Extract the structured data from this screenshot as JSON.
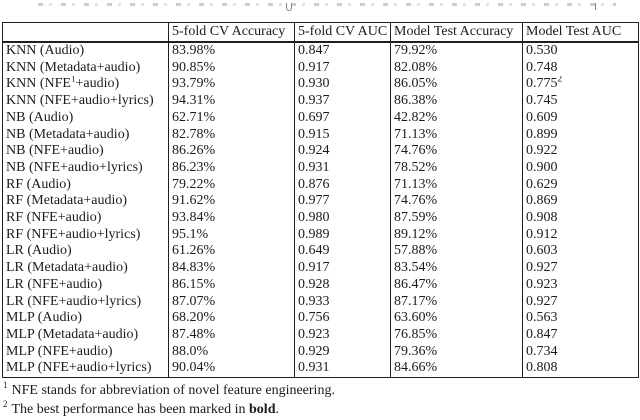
{
  "table": {
    "columns": [
      "",
      "5-fold CV Accuracy",
      "5-fold CV AUC",
      "Model Test Accuracy",
      "Model Test AUC"
    ],
    "rows": [
      {
        "label": {
          "pre": "KNN (Audio)",
          "sup": "",
          "post": ""
        },
        "cells": [
          {
            "t": "83.98%",
            "b": false,
            "sup": ""
          },
          {
            "t": "0.847",
            "b": false,
            "sup": ""
          },
          {
            "t": "79.92%",
            "b": false,
            "sup": ""
          },
          {
            "t": "0.530",
            "b": false,
            "sup": ""
          }
        ]
      },
      {
        "label": {
          "pre": "KNN (Metadata+audio)",
          "sup": "",
          "post": ""
        },
        "cells": [
          {
            "t": "90.85%",
            "b": false,
            "sup": ""
          },
          {
            "t": "0.917",
            "b": false,
            "sup": ""
          },
          {
            "t": "82.08%",
            "b": false,
            "sup": ""
          },
          {
            "t": "0.748",
            "b": false,
            "sup": ""
          }
        ]
      },
      {
        "label": {
          "pre": "KNN (NFE",
          "sup": "1",
          "post": "+audio)"
        },
        "cells": [
          {
            "t": "93.79%",
            "b": false,
            "sup": ""
          },
          {
            "t": "0.930",
            "b": false,
            "sup": ""
          },
          {
            "t": "86.05%",
            "b": false,
            "sup": ""
          },
          {
            "t": "0.775",
            "b": true,
            "sup": "2"
          }
        ]
      },
      {
        "label": {
          "pre": "KNN (NFE+audio+lyrics)",
          "sup": "",
          "post": ""
        },
        "cells": [
          {
            "t": "94.31%",
            "b": true,
            "sup": ""
          },
          {
            "t": "0.937",
            "b": true,
            "sup": ""
          },
          {
            "t": "86.38%",
            "b": true,
            "sup": ""
          },
          {
            "t": "0.745",
            "b": false,
            "sup": ""
          }
        ]
      },
      {
        "label": {
          "pre": "NB (Audio)",
          "sup": "",
          "post": ""
        },
        "cells": [
          {
            "t": "62.71%",
            "b": false,
            "sup": ""
          },
          {
            "t": "0.697",
            "b": false,
            "sup": ""
          },
          {
            "t": "42.82%",
            "b": false,
            "sup": ""
          },
          {
            "t": "0.609",
            "b": false,
            "sup": ""
          }
        ]
      },
      {
        "label": {
          "pre": "NB (Metadata+audio)",
          "sup": "",
          "post": ""
        },
        "cells": [
          {
            "t": "82.78%",
            "b": false,
            "sup": ""
          },
          {
            "t": "0.915",
            "b": false,
            "sup": ""
          },
          {
            "t": "71.13%",
            "b": false,
            "sup": ""
          },
          {
            "t": "0.899",
            "b": false,
            "sup": ""
          }
        ]
      },
      {
        "label": {
          "pre": "NB (NFE+audio)",
          "sup": "",
          "post": ""
        },
        "cells": [
          {
            "t": "86.26%",
            "b": true,
            "sup": ""
          },
          {
            "t": "0.924",
            "b": false,
            "sup": ""
          },
          {
            "t": "74.76%",
            "b": false,
            "sup": ""
          },
          {
            "t": "0.922",
            "b": true,
            "sup": ""
          }
        ]
      },
      {
        "label": {
          "pre": "NB (NFE+audio+lyrics)",
          "sup": "",
          "post": ""
        },
        "cells": [
          {
            "t": "86.23%",
            "b": false,
            "sup": ""
          },
          {
            "t": "0.931",
            "b": true,
            "sup": ""
          },
          {
            "t": "78.52%",
            "b": true,
            "sup": ""
          },
          {
            "t": "0.900",
            "b": false,
            "sup": ""
          }
        ]
      },
      {
        "label": {
          "pre": "RF (Audio)",
          "sup": "",
          "post": ""
        },
        "cells": [
          {
            "t": "79.22%",
            "b": false,
            "sup": ""
          },
          {
            "t": "0.876",
            "b": false,
            "sup": ""
          },
          {
            "t": "71.13%",
            "b": false,
            "sup": ""
          },
          {
            "t": "0.629",
            "b": false,
            "sup": ""
          }
        ]
      },
      {
        "label": {
          "pre": "RF (Metadata+audio)",
          "sup": "",
          "post": ""
        },
        "cells": [
          {
            "t": "91.62%",
            "b": false,
            "sup": ""
          },
          {
            "t": "0.977",
            "b": false,
            "sup": ""
          },
          {
            "t": "74.76%",
            "b": false,
            "sup": ""
          },
          {
            "t": "0.869",
            "b": false,
            "sup": ""
          }
        ]
      },
      {
        "label": {
          "pre": "RF (NFE+audio)",
          "sup": "",
          "post": ""
        },
        "cells": [
          {
            "t": "93.84%",
            "b": false,
            "sup": ""
          },
          {
            "t": "0.980",
            "b": false,
            "sup": ""
          },
          {
            "t": "87.59%",
            "b": false,
            "sup": ""
          },
          {
            "t": "0.908",
            "b": false,
            "sup": ""
          }
        ]
      },
      {
        "label": {
          "pre": "RF (NFE+audio+lyrics)",
          "sup": "",
          "post": ""
        },
        "cells": [
          {
            "t": "95.1%",
            "b": true,
            "sup": ""
          },
          {
            "t": "0.989",
            "b": true,
            "sup": ""
          },
          {
            "t": "89.12%",
            "b": true,
            "sup": ""
          },
          {
            "t": "0.912",
            "b": true,
            "sup": ""
          }
        ]
      },
      {
        "label": {
          "pre": "LR (Audio)",
          "sup": "",
          "post": ""
        },
        "cells": [
          {
            "t": "61.26%",
            "b": false,
            "sup": ""
          },
          {
            "t": "0.649",
            "b": false,
            "sup": ""
          },
          {
            "t": "57.88%",
            "b": false,
            "sup": ""
          },
          {
            "t": "0.603",
            "b": false,
            "sup": ""
          }
        ]
      },
      {
        "label": {
          "pre": "LR (Metadata+audio)",
          "sup": "",
          "post": ""
        },
        "cells": [
          {
            "t": "84.83%",
            "b": false,
            "sup": ""
          },
          {
            "t": "0.917",
            "b": false,
            "sup": ""
          },
          {
            "t": "83.54%",
            "b": false,
            "sup": ""
          },
          {
            "t": "0.927",
            "b": false,
            "sup": ""
          }
        ]
      },
      {
        "label": {
          "pre": "LR (NFE+audio)",
          "sup": "",
          "post": ""
        },
        "cells": [
          {
            "t": "86.15%",
            "b": false,
            "sup": ""
          },
          {
            "t": "0.928",
            "b": false,
            "sup": ""
          },
          {
            "t": "86.47%",
            "b": false,
            "sup": ""
          },
          {
            "t": "0.923",
            "b": false,
            "sup": ""
          }
        ]
      },
      {
        "label": {
          "pre": "LR (NFE+audio+lyrics)",
          "sup": "",
          "post": ""
        },
        "cells": [
          {
            "t": "87.07%",
            "b": true,
            "sup": ""
          },
          {
            "t": "0.933",
            "b": true,
            "sup": ""
          },
          {
            "t": "87.17%",
            "b": true,
            "sup": ""
          },
          {
            "t": "0.927",
            "b": true,
            "sup": ""
          }
        ]
      },
      {
        "label": {
          "pre": "MLP (Audio)",
          "sup": "",
          "post": ""
        },
        "cells": [
          {
            "t": "68.20%",
            "b": false,
            "sup": ""
          },
          {
            "t": "0.756",
            "b": false,
            "sup": ""
          },
          {
            "t": "63.60%",
            "b": false,
            "sup": ""
          },
          {
            "t": "0.563",
            "b": false,
            "sup": ""
          }
        ]
      },
      {
        "label": {
          "pre": "MLP (Metadata+audio)",
          "sup": "",
          "post": ""
        },
        "cells": [
          {
            "t": "87.48%",
            "b": false,
            "sup": ""
          },
          {
            "t": "0.923",
            "b": false,
            "sup": ""
          },
          {
            "t": "76.85%",
            "b": false,
            "sup": ""
          },
          {
            "t": "0.847",
            "b": true,
            "sup": ""
          }
        ]
      },
      {
        "label": {
          "pre": "MLP (NFE+audio)",
          "sup": "",
          "post": ""
        },
        "cells": [
          {
            "t": "88.0%",
            "b": false,
            "sup": ""
          },
          {
            "t": "0.929",
            "b": false,
            "sup": ""
          },
          {
            "t": "79.36%",
            "b": false,
            "sup": ""
          },
          {
            "t": "0.734",
            "b": false,
            "sup": ""
          }
        ]
      },
      {
        "label": {
          "pre": "MLP (NFE+audio+lyrics)",
          "sup": "",
          "post": ""
        },
        "cells": [
          {
            "t": "90.04%",
            "b": true,
            "sup": ""
          },
          {
            "t": "0.931",
            "b": true,
            "sup": ""
          },
          {
            "t": "84.66%",
            "b": true,
            "sup": ""
          },
          {
            "t": "0.808",
            "b": false,
            "sup": ""
          }
        ]
      }
    ]
  },
  "footnotes": [
    {
      "marker": "1",
      "pre": "NFE stands for abbreviation of novel feature engineering.",
      "bold": "",
      "post": ""
    },
    {
      "marker": "2",
      "pre": "The best performance has been marked in ",
      "bold": "bold",
      "post": "."
    }
  ]
}
